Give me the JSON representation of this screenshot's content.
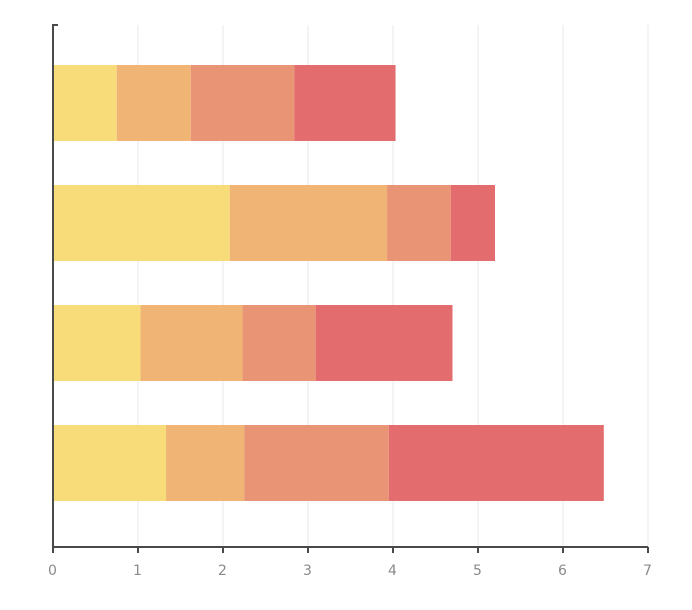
{
  "chart_data": {
    "type": "bar",
    "orientation": "horizontal",
    "stacked": true,
    "title": "",
    "xlabel": "",
    "ylabel": "",
    "xlim": [
      0,
      7
    ],
    "x_ticks": [
      "0",
      "1",
      "2",
      "3",
      "4",
      "5",
      "6",
      "7"
    ],
    "grid": "vertical",
    "legend": "none",
    "categories": [
      "",
      "",
      "",
      ""
    ],
    "series": [
      {
        "color": "#f9dc7a",
        "values": [
          0.75,
          2.08,
          1.03,
          1.33
        ]
      },
      {
        "color": "#f0b575",
        "values": [
          0.87,
          1.85,
          1.2,
          0.92
        ]
      },
      {
        "color": "#e99474",
        "values": [
          1.22,
          0.75,
          0.86,
          1.7
        ]
      },
      {
        "color": "#e36d6e",
        "values": [
          1.19,
          0.52,
          1.61,
          2.53
        ]
      }
    ]
  }
}
